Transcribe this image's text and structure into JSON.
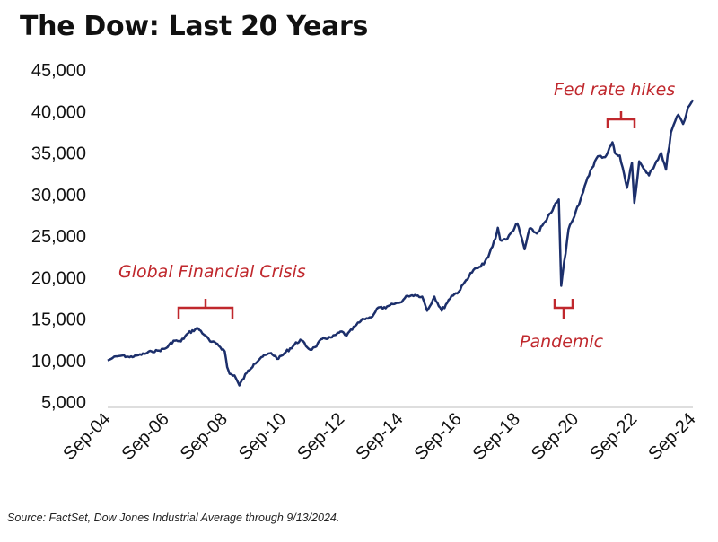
{
  "title": "The Dow: Last 20 Years",
  "source": "Source: FactSet, Dow Jones Industrial Average through 9/13/2024.",
  "colors": {
    "line": "#1c2f6b",
    "annotation": "#c0282d"
  },
  "chart_data": {
    "type": "line",
    "title": "The Dow: Last 20 Years",
    "xlabel": "",
    "ylabel": "",
    "ylim": [
      5000,
      45000
    ],
    "xlim": [
      "2004-09",
      "2024-09"
    ],
    "grid": false,
    "yticks": [
      "45,000",
      "40,000",
      "35,000",
      "30,000",
      "25,000",
      "20,000",
      "15,000",
      "10,000",
      "5,000"
    ],
    "xticks": [
      "Sep-04",
      "Sep-06",
      "Sep-08",
      "Sep-10",
      "Sep-12",
      "Sep-14",
      "Sep-16",
      "Sep-18",
      "Sep-20",
      "Sep-22",
      "Sep-24"
    ],
    "series": [
      {
        "values_x": [
          "2004-09",
          "2004-11",
          "2005-01",
          "2005-03",
          "2005-06",
          "2005-09",
          "2005-12",
          "2006-03",
          "2006-06",
          "2006-09",
          "2006-12",
          "2007-03",
          "2007-06",
          "2007-10",
          "2008-01",
          "2008-03",
          "2008-06",
          "2008-09",
          "2008-10",
          "2008-11",
          "2009-01",
          "2009-03",
          "2009-06",
          "2009-09",
          "2009-12",
          "2010-04",
          "2010-07",
          "2010-10",
          "2011-04",
          "2011-08",
          "2011-10",
          "2012-01",
          "2012-05",
          "2012-09",
          "2012-11",
          "2013-03",
          "2013-06",
          "2013-09",
          "2013-12",
          "2014-03",
          "2014-06",
          "2014-09",
          "2014-12",
          "2015-03",
          "2015-06",
          "2015-08",
          "2015-11",
          "2016-02",
          "2016-06",
          "2016-09",
          "2016-12",
          "2017-03",
          "2017-06",
          "2017-09",
          "2017-12",
          "2018-01",
          "2018-02",
          "2018-05",
          "2018-09",
          "2018-12",
          "2019-02",
          "2019-05",
          "2019-09",
          "2019-12",
          "2020-02",
          "2020-03",
          "2020-06",
          "2020-09",
          "2020-12",
          "2021-03",
          "2021-06",
          "2021-09",
          "2021-12",
          "2022-01",
          "2022-03",
          "2022-06",
          "2022-08",
          "2022-09",
          "2022-11",
          "2023-02",
          "2023-03",
          "2023-06",
          "2023-08",
          "2023-10",
          "2023-12",
          "2024-03",
          "2024-05",
          "2024-07",
          "2024-08",
          "2024-09"
        ],
        "values": [
          10000,
          10300,
          10500,
          10600,
          10400,
          10600,
          10800,
          11100,
          11200,
          11500,
          12400,
          12300,
          13300,
          13900,
          13000,
          12300,
          12000,
          11100,
          9200,
          8400,
          8200,
          7000,
          8500,
          9600,
          10400,
          10900,
          10200,
          11000,
          12500,
          11300,
          11600,
          12600,
          12800,
          13500,
          13000,
          14300,
          15000,
          15200,
          16400,
          16300,
          16800,
          17000,
          17800,
          17900,
          17700,
          16000,
          17700,
          16000,
          17800,
          18300,
          19700,
          20900,
          21300,
          22400,
          24700,
          26000,
          24500,
          24700,
          26500,
          23400,
          25900,
          25300,
          26900,
          28500,
          29400,
          19000,
          25800,
          28000,
          30300,
          32900,
          34600,
          34500,
          36300,
          35000,
          34700,
          30800,
          33800,
          29000,
          34000,
          32600,
          32300,
          34000,
          35000,
          33000,
          37500,
          39600,
          38500,
          40500,
          40900,
          41400
        ]
      }
    ],
    "annotations": [
      {
        "text": "Global Financial Crisis",
        "x": "2007-12"
      },
      {
        "text": "Pandemic",
        "x": "2020-03"
      },
      {
        "text": "Fed rate hikes",
        "x": "2022-02"
      }
    ]
  }
}
